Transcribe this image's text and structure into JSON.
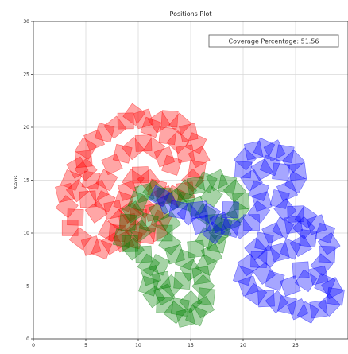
{
  "chart_data": {
    "type": "scatter",
    "title": "Positions Plot",
    "xlabel": "",
    "ylabel": "Y-axis",
    "xlim": [
      0,
      30
    ],
    "ylim": [
      0,
      30
    ],
    "x_ticks": [
      0,
      5,
      10,
      15,
      20,
      25
    ],
    "y_ticks": [
      0,
      5,
      10,
      15,
      20,
      25,
      30
    ],
    "grid": true,
    "marker": "square",
    "annotation": "Coverage Percentage: 51.56",
    "annotation_position": "top-right",
    "series": [
      {
        "color": "#ff0000",
        "points": [
          [
            3.5,
            10.5
          ],
          [
            4.5,
            9.5
          ],
          [
            5.5,
            8.8
          ],
          [
            6.5,
            8.5
          ],
          [
            7.5,
            9.0
          ],
          [
            8.0,
            10.0
          ],
          [
            8.2,
            11.2
          ],
          [
            7.6,
            12.2
          ],
          [
            6.8,
            13.0
          ],
          [
            6.2,
            14.0
          ],
          [
            5.5,
            15.0
          ],
          [
            5.0,
            16.0
          ],
          [
            4.8,
            17.0
          ],
          [
            5.0,
            18.0
          ],
          [
            5.8,
            18.8
          ],
          [
            6.8,
            19.5
          ],
          [
            7.8,
            20.0
          ],
          [
            8.8,
            20.6
          ],
          [
            9.6,
            21.2
          ],
          [
            10.5,
            20.8
          ],
          [
            11.2,
            20.0
          ],
          [
            12.0,
            20.5
          ],
          [
            13.0,
            20.8
          ],
          [
            14.0,
            20.3
          ],
          [
            14.8,
            19.5
          ],
          [
            15.5,
            18.5
          ],
          [
            15.8,
            17.2
          ],
          [
            15.6,
            16.0
          ],
          [
            15.2,
            15.0
          ],
          [
            14.5,
            14.0
          ],
          [
            13.5,
            13.5
          ],
          [
            12.5,
            13.5
          ],
          [
            11.8,
            14.2
          ],
          [
            11.0,
            15.0
          ],
          [
            10.2,
            15.5
          ],
          [
            9.5,
            15.0
          ],
          [
            9.0,
            14.0
          ],
          [
            8.6,
            13.0
          ],
          [
            9.2,
            12.0
          ],
          [
            10.0,
            11.5
          ],
          [
            10.5,
            12.5
          ],
          [
            11.5,
            12.0
          ],
          [
            12.2,
            11.2
          ],
          [
            11.8,
            10.2
          ],
          [
            10.8,
            9.8
          ],
          [
            9.8,
            10.2
          ],
          [
            9.0,
            11.0
          ],
          [
            7.0,
            15.0
          ],
          [
            7.5,
            16.5
          ],
          [
            8.5,
            17.5
          ],
          [
            9.5,
            18.0
          ],
          [
            10.5,
            18.5
          ],
          [
            11.5,
            18.0
          ],
          [
            12.5,
            17.2
          ],
          [
            13.2,
            16.4
          ],
          [
            6.0,
            12.0
          ],
          [
            4.0,
            11.5
          ],
          [
            3.2,
            12.5
          ],
          [
            3.0,
            13.8
          ],
          [
            3.6,
            15.0
          ],
          [
            4.2,
            16.2
          ],
          [
            12.8,
            19.2
          ],
          [
            13.8,
            18.6
          ],
          [
            14.5,
            17.5
          ],
          [
            7.2,
            10.2
          ],
          [
            8.6,
            9.2
          ],
          [
            9.5,
            9.4
          ],
          [
            4.2,
            14.0
          ],
          [
            5.2,
            13.2
          ]
        ]
      },
      {
        "color": "#008000",
        "points": [
          [
            8.5,
            9.5
          ],
          [
            9.5,
            8.5
          ],
          [
            10.5,
            8.0
          ],
          [
            11.0,
            7.0
          ],
          [
            11.2,
            6.0
          ],
          [
            11.0,
            5.0
          ],
          [
            11.5,
            4.0
          ],
          [
            12.5,
            3.2
          ],
          [
            13.5,
            2.5
          ],
          [
            14.5,
            2.0
          ],
          [
            15.5,
            2.2
          ],
          [
            16.2,
            3.0
          ],
          [
            16.5,
            4.0
          ],
          [
            16.2,
            5.0
          ],
          [
            16.0,
            6.0
          ],
          [
            16.5,
            7.0
          ],
          [
            17.0,
            8.0
          ],
          [
            17.5,
            9.0
          ],
          [
            17.8,
            10.0
          ],
          [
            17.2,
            11.0
          ],
          [
            16.4,
            11.8
          ],
          [
            15.5,
            12.5
          ],
          [
            14.5,
            13.0
          ],
          [
            13.5,
            13.2
          ],
          [
            12.5,
            13.5
          ],
          [
            11.5,
            14.0
          ],
          [
            10.6,
            13.8
          ],
          [
            10.0,
            13.0
          ],
          [
            9.5,
            12.0
          ],
          [
            9.0,
            11.0
          ],
          [
            14.5,
            14.0
          ],
          [
            15.5,
            14.5
          ],
          [
            16.5,
            14.8
          ],
          [
            17.5,
            15.0
          ],
          [
            18.5,
            14.6
          ],
          [
            19.2,
            14.0
          ],
          [
            19.8,
            13.0
          ],
          [
            19.5,
            12.0
          ],
          [
            18.8,
            11.2
          ],
          [
            18.0,
            10.6
          ],
          [
            13.0,
            11.0
          ],
          [
            12.5,
            10.0
          ],
          [
            13.0,
            9.0
          ],
          [
            13.5,
            8.0
          ],
          [
            14.5,
            7.5
          ],
          [
            15.0,
            6.5
          ],
          [
            14.2,
            5.5
          ],
          [
            13.2,
            5.0
          ],
          [
            12.2,
            5.5
          ],
          [
            12.0,
            7.0
          ],
          [
            12.5,
            4.2
          ],
          [
            14.0,
            3.0
          ],
          [
            15.0,
            3.5
          ],
          [
            15.5,
            8.5
          ],
          [
            16.5,
            9.5
          ],
          [
            12.0,
            12.0
          ],
          [
            11.0,
            11.0
          ],
          [
            10.2,
            10.2
          ],
          [
            9.2,
            9.0
          ],
          [
            17.0,
            13.5
          ]
        ]
      },
      {
        "color": "#0000ff",
        "points": [
          [
            12.0,
            13.5
          ],
          [
            12.8,
            12.8
          ],
          [
            13.8,
            12.2
          ],
          [
            14.8,
            11.8
          ],
          [
            15.8,
            12.2
          ],
          [
            16.8,
            11.8
          ],
          [
            17.8,
            11.0
          ],
          [
            18.8,
            10.5
          ],
          [
            19.8,
            10.5
          ],
          [
            20.8,
            11.0
          ],
          [
            21.5,
            12.0
          ],
          [
            21.8,
            13.0
          ],
          [
            21.5,
            14.0
          ],
          [
            20.8,
            15.0
          ],
          [
            20.0,
            16.0
          ],
          [
            20.2,
            17.0
          ],
          [
            21.0,
            17.8
          ],
          [
            22.0,
            18.0
          ],
          [
            23.0,
            17.8
          ],
          [
            24.0,
            17.5
          ],
          [
            24.8,
            16.8
          ],
          [
            25.2,
            15.8
          ],
          [
            25.0,
            14.8
          ],
          [
            24.2,
            14.0
          ],
          [
            23.5,
            13.2
          ],
          [
            24.0,
            12.2
          ],
          [
            25.0,
            11.8
          ],
          [
            26.0,
            11.5
          ],
          [
            27.0,
            10.8
          ],
          [
            27.8,
            10.0
          ],
          [
            28.2,
            9.0
          ],
          [
            28.0,
            8.0
          ],
          [
            27.5,
            7.0
          ],
          [
            27.2,
            6.0
          ],
          [
            27.8,
            5.2
          ],
          [
            28.5,
            4.8
          ],
          [
            28.8,
            4.0
          ],
          [
            28.2,
            3.2
          ],
          [
            27.2,
            2.8
          ],
          [
            26.2,
            2.5
          ],
          [
            25.2,
            2.8
          ],
          [
            24.2,
            3.2
          ],
          [
            23.2,
            3.5
          ],
          [
            22.2,
            3.8
          ],
          [
            21.2,
            4.2
          ],
          [
            20.5,
            5.0
          ],
          [
            20.0,
            6.0
          ],
          [
            20.5,
            7.0
          ],
          [
            21.5,
            7.5
          ],
          [
            22.5,
            7.8
          ],
          [
            23.5,
            8.2
          ],
          [
            24.5,
            8.5
          ],
          [
            25.5,
            8.8
          ],
          [
            26.2,
            9.5
          ],
          [
            25.8,
            10.5
          ],
          [
            24.8,
            10.8
          ],
          [
            23.8,
            10.5
          ],
          [
            22.8,
            10.0
          ],
          [
            22.0,
            9.2
          ],
          [
            21.2,
            8.5
          ],
          [
            25.5,
            6.5
          ],
          [
            26.0,
            5.5
          ],
          [
            24.5,
            5.0
          ],
          [
            23.0,
            5.5
          ],
          [
            22.0,
            6.2
          ],
          [
            18.8,
            12.2
          ],
          [
            17.2,
            10.0
          ],
          [
            16.0,
            10.8
          ],
          [
            22.6,
            16.4
          ],
          [
            21.8,
            16.0
          ],
          [
            23.6,
            15.8
          ]
        ]
      }
    ]
  }
}
